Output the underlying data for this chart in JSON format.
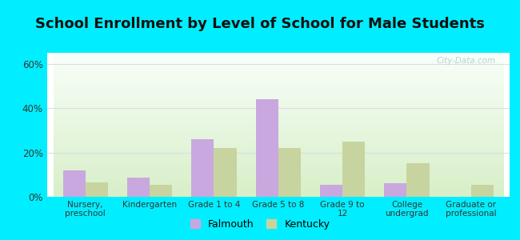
{
  "title": "School Enrollment by Level of School for Male Students",
  "categories": [
    "Nursery,\npreschool",
    "Kindergarten",
    "Grade 1 to 4",
    "Grade 5 to 8",
    "Grade 9 to\n12",
    "College\nundergrad",
    "Graduate or\nprofessional"
  ],
  "falmouth": [
    12,
    8.5,
    26,
    44,
    5.5,
    6,
    0
  ],
  "kentucky": [
    6.5,
    5.5,
    22,
    22,
    25,
    15,
    5.5
  ],
  "bar_color_falmouth": "#c9a8e0",
  "bar_color_kentucky": "#c8d4a0",
  "background_outer": "#00eeff",
  "background_inner_top": "#f8fffa",
  "background_inner_bottom": "#d8efc8",
  "grid_color": "#dddddd",
  "yticks": [
    0,
    20,
    40,
    60
  ],
  "ylim": [
    0,
    65
  ],
  "legend_falmouth": "Falmouth",
  "legend_kentucky": "Kentucky",
  "title_fontsize": 13,
  "bar_width": 0.35
}
